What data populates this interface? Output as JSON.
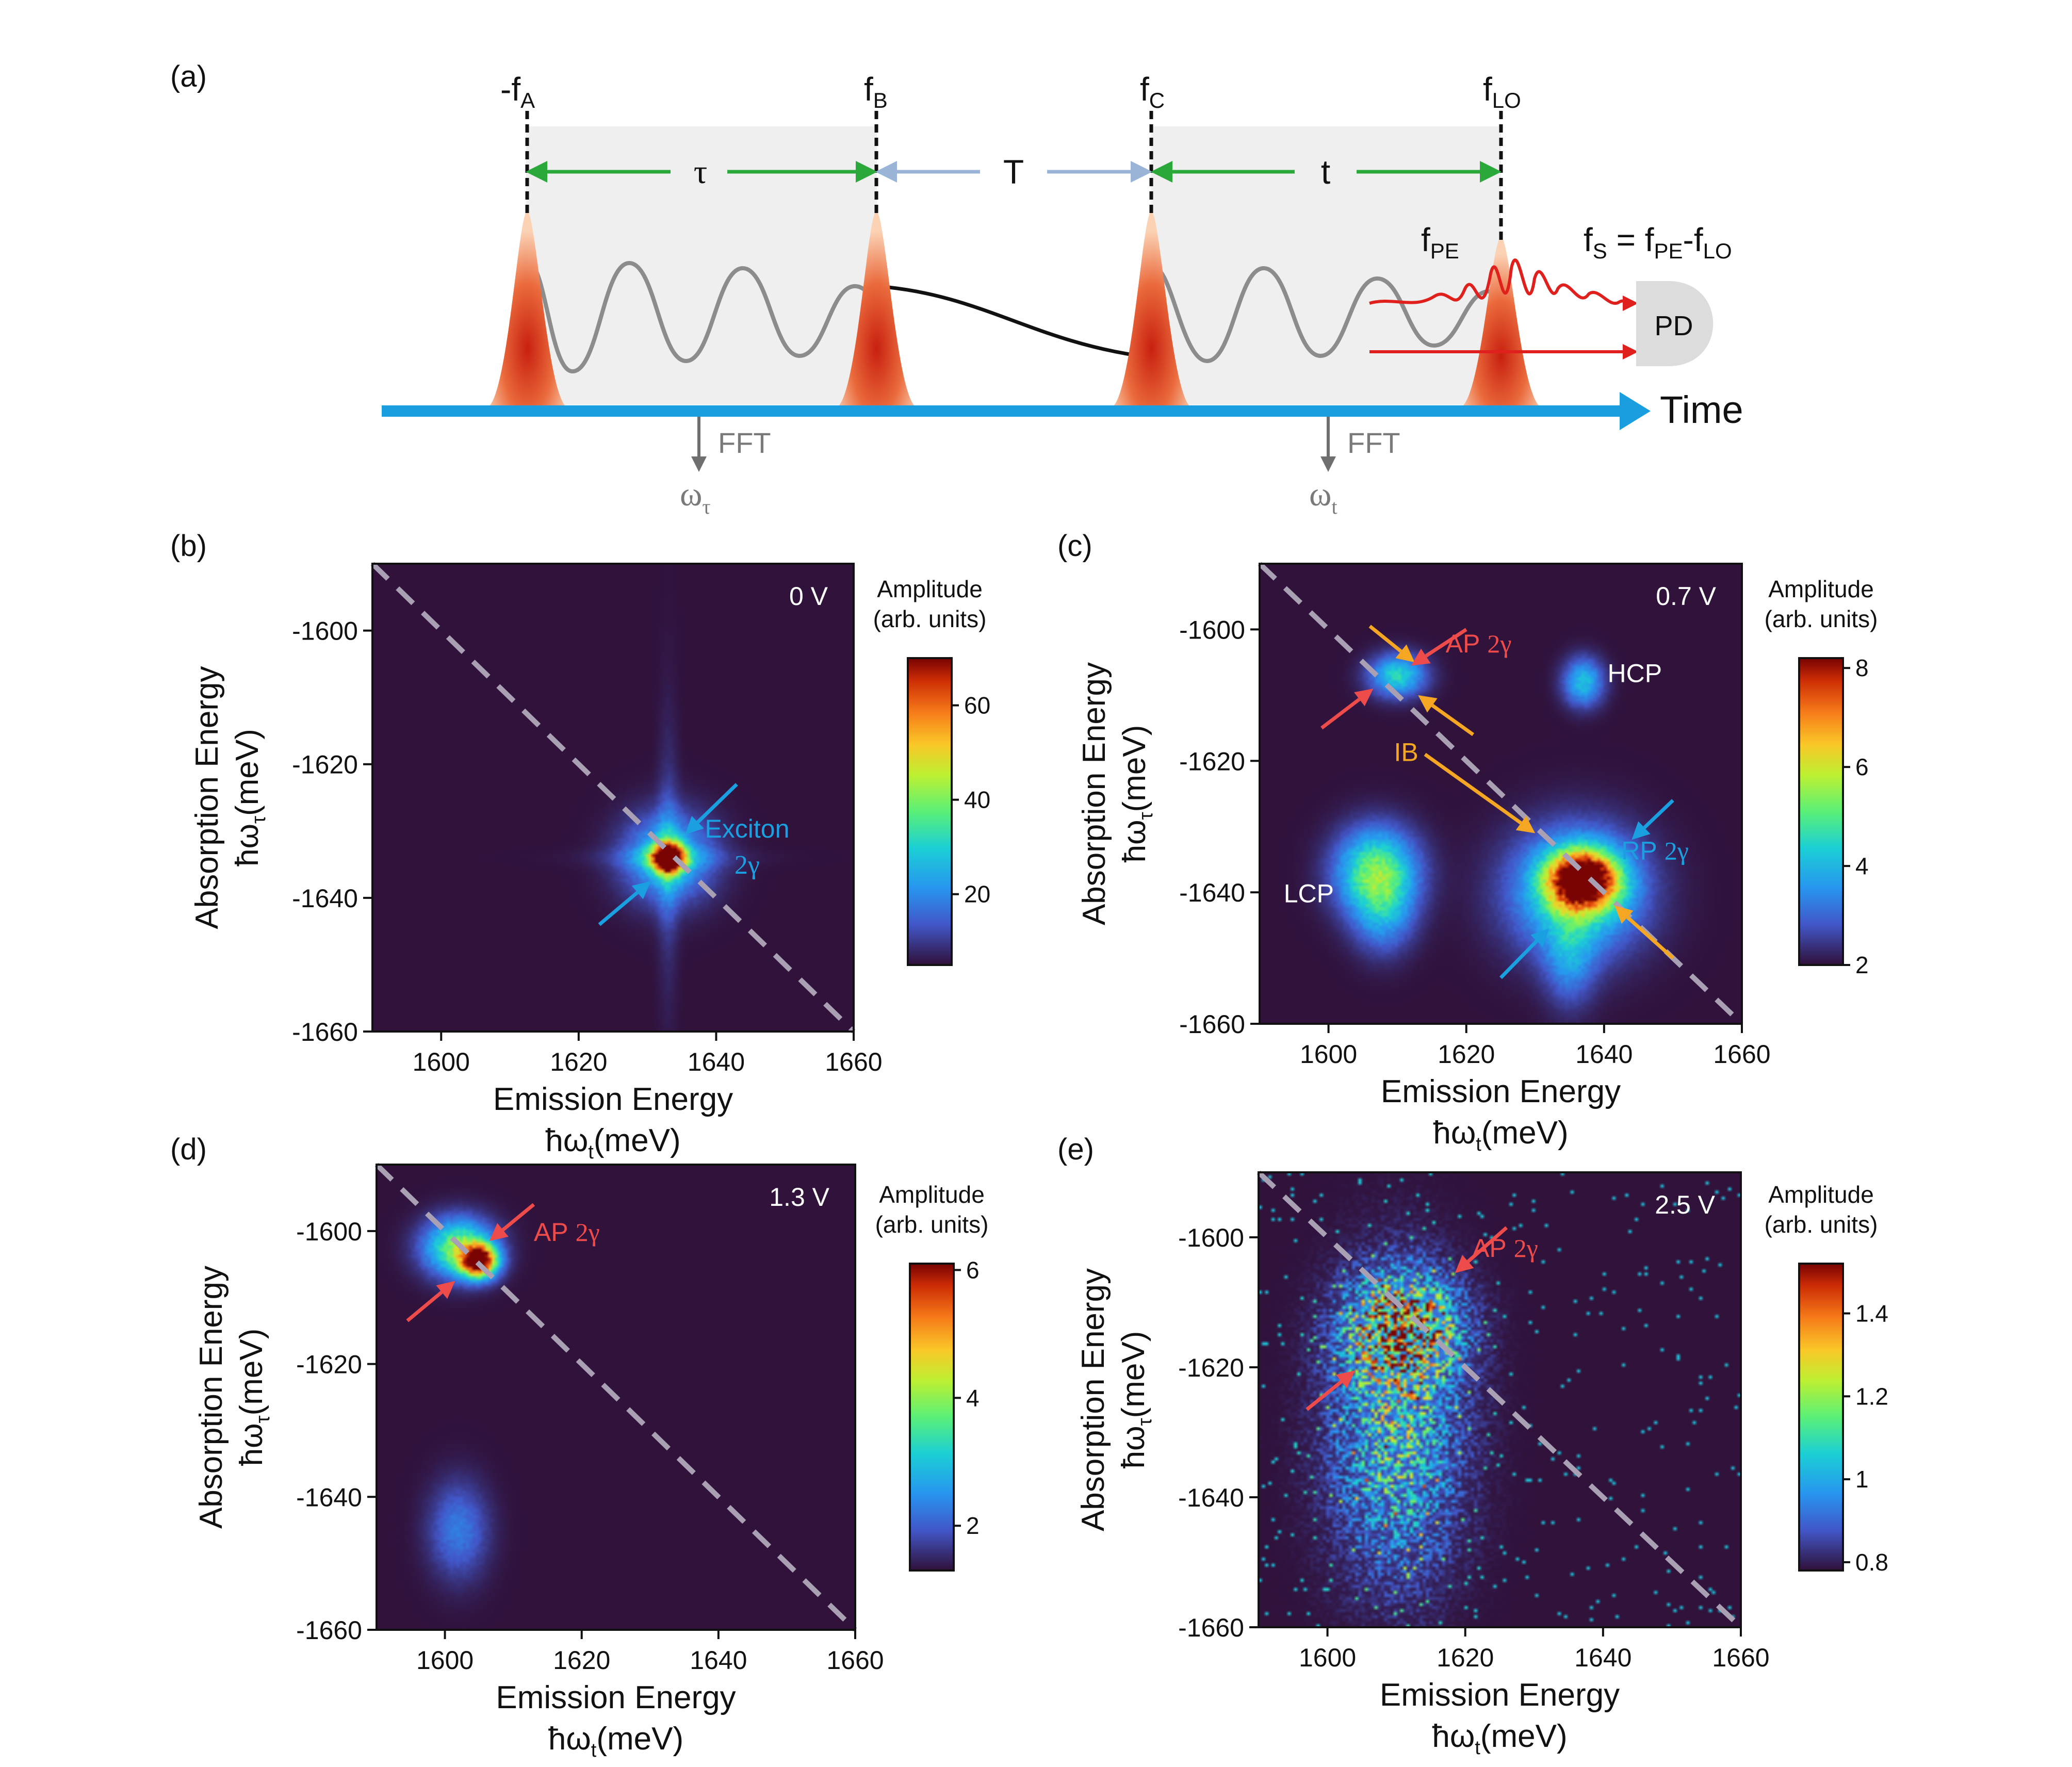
{
  "figure": {
    "colors": {
      "plot_bg": "#2a1b44",
      "diagonal": "#a9a0b4",
      "green": "#2aa83a",
      "lightblue": "#9ab4d8",
      "cyan": "#1aa0e0",
      "red": "#ee4b4b",
      "orange": "#f5a623",
      "timeline": "#1a9ee0",
      "shade": "#efefef",
      "wave": "#8c8c8c"
    },
    "schematic": {
      "panel_label": "(a)",
      "pulses": [
        {
          "label": "-f",
          "sub": "A"
        },
        {
          "label": "f",
          "sub": "B"
        },
        {
          "label": "f",
          "sub": "C"
        },
        {
          "label": "f",
          "sub": "LO"
        }
      ],
      "delays": [
        "τ",
        "T",
        "t"
      ],
      "signal_label": {
        "label": "f",
        "sub": "PE"
      },
      "equation": {
        "a": "f",
        "a_sub": "S",
        "eq": " = f",
        "b_sub": "PE",
        "minus": "-f",
        "c_sub": "LO"
      },
      "detector": "PD",
      "axis_label": "Time",
      "fft_labels": [
        "FFT",
        "FFT"
      ],
      "freq_labels": [
        {
          "label": "ω",
          "sub": "τ"
        },
        {
          "label": "ω",
          "sub": "t"
        }
      ]
    }
  },
  "chart_data": [
    {
      "panel": "(b)",
      "type": "heatmap",
      "voltage": "0 V",
      "xlabel": "Emission Energy",
      "xlabel2": "ħω",
      "xlabel2_sub": "t",
      "xlabel2_unit": "(meV)",
      "ylabel": "Absorption Energy",
      "ylabel2": "ħω",
      "ylabel2_sub": "τ",
      "ylabel2_unit": "(meV)",
      "xlim": [
        1590,
        1660
      ],
      "ylim": [
        -1660,
        -1590
      ],
      "xticks": [
        1600,
        1620,
        1640,
        1660
      ],
      "yticks": [
        -1600,
        -1620,
        -1640,
        -1660
      ],
      "colorbar": {
        "title": "Amplitude",
        "subtitle": "(arb. units)",
        "range": [
          5,
          70
        ],
        "ticks": [
          20,
          40,
          60
        ]
      },
      "peaks": [
        {
          "x": 1633,
          "y": -1634,
          "sx": 1.6,
          "sy": 1.5,
          "amp": 1.0
        },
        {
          "x": 1633,
          "y": -1634,
          "sx": 4.5,
          "sy": 4.5,
          "amp": 0.35
        }
      ],
      "cross": {
        "x": 1633,
        "y": -1634,
        "armx": 12,
        "army": 26,
        "amp": 0.22
      },
      "annotations": [
        {
          "text": "Exciton",
          "sub": "2γ",
          "x": 1644.5,
          "y": -1631,
          "color": "cyan"
        }
      ],
      "arrows": [
        {
          "x1": 1643,
          "y1": -1623,
          "x2": 1635.5,
          "y2": -1630.5,
          "color": "cyan"
        },
        {
          "x1": 1623,
          "y1": -1644,
          "x2": 1630.5,
          "y2": -1637.5,
          "color": "cyan"
        }
      ]
    },
    {
      "panel": "(c)",
      "type": "heatmap",
      "voltage": "0.7 V",
      "xlabel": "Emission Energy",
      "xlabel2": "ħω",
      "xlabel2_sub": "t",
      "xlabel2_unit": "(meV)",
      "ylabel": "Absorption Energy",
      "ylabel2": "ħω",
      "ylabel2_sub": "τ",
      "ylabel2_unit": "(meV)",
      "xlim": [
        1590,
        1660
      ],
      "ylim": [
        -1660,
        -1590
      ],
      "xticks": [
        1600,
        1620,
        1640,
        1660
      ],
      "yticks": [
        -1600,
        -1620,
        -1640,
        -1660
      ],
      "colorbar": {
        "title": "Amplitude",
        "subtitle": "(arb. units)",
        "range": [
          2,
          8.2
        ],
        "ticks": [
          2,
          4,
          6,
          8
        ]
      },
      "peaks": [
        {
          "x": 1637,
          "y": -1638,
          "sx": 3.5,
          "sy": 3.0,
          "amp": 1.0
        },
        {
          "x": 1636,
          "y": -1640,
          "sx": 6.5,
          "sy": 6.5,
          "amp": 0.45
        },
        {
          "x": 1635,
          "y": -1650,
          "sx": 2.5,
          "sy": 5.0,
          "amp": 0.2
        },
        {
          "x": 1607,
          "y": -1637,
          "sx": 4.0,
          "sy": 4.5,
          "amp": 0.55
        },
        {
          "x": 1608,
          "y": -1644,
          "sx": 3.0,
          "sy": 4.0,
          "amp": 0.2
        },
        {
          "x": 1637,
          "y": -1608,
          "sx": 2.0,
          "sy": 2.5,
          "amp": 0.35
        },
        {
          "x": 1610,
          "y": -1607,
          "sx": 2.8,
          "sy": 2.2,
          "amp": 0.4
        }
      ],
      "annotations": [
        {
          "text": "AP",
          "sub": "2γ",
          "x": 1617,
          "y": -1603.5,
          "color": "red"
        },
        {
          "text": "HCP",
          "x": 1640.5,
          "y": -1608,
          "color": "white"
        },
        {
          "text": "IB",
          "x": 1609.5,
          "y": -1620,
          "color": "orange"
        },
        {
          "text": "RP",
          "sub": "2γ",
          "x": 1642.5,
          "y": -1635,
          "color": "cyan"
        },
        {
          "text": "LCP",
          "x": 1593.5,
          "y": -1641.5,
          "color": "white"
        }
      ],
      "arrows": [
        {
          "x1": 1606,
          "y1": -1599.5,
          "x2": 1612.5,
          "y2": -1605,
          "color": "orange"
        },
        {
          "x1": 1620,
          "y1": -1600,
          "x2": 1612,
          "y2": -1605.5,
          "color": "red"
        },
        {
          "x1": 1599,
          "y1": -1615,
          "x2": 1606.5,
          "y2": -1609,
          "color": "red"
        },
        {
          "x1": 1621,
          "y1": -1616,
          "x2": 1613,
          "y2": -1610,
          "color": "orange"
        },
        {
          "x1": 1614,
          "y1": -1619,
          "x2": 1630,
          "y2": -1631,
          "color": "orange"
        },
        {
          "x1": 1650,
          "y1": -1626,
          "x2": 1644,
          "y2": -1632,
          "color": "cyan"
        },
        {
          "x1": 1625,
          "y1": -1653,
          "x2": 1632,
          "y2": -1645.5,
          "color": "cyan"
        },
        {
          "x1": 1650,
          "y1": -1650,
          "x2": 1641.5,
          "y2": -1642,
          "color": "orange"
        }
      ]
    },
    {
      "panel": "(d)",
      "type": "heatmap",
      "voltage": "1.3 V",
      "xlabel": "Emission Energy",
      "xlabel2": "ħω",
      "xlabel2_sub": "t",
      "xlabel2_unit": "(meV)",
      "ylabel": "Absorption Energy",
      "ylabel2": "ħω",
      "ylabel2_sub": "τ",
      "ylabel2_unit": "(meV)",
      "xlim": [
        1590,
        1660
      ],
      "ylim": [
        -1660,
        -1590
      ],
      "xticks": [
        1600,
        1620,
        1640,
        1660
      ],
      "yticks": [
        -1600,
        -1620,
        -1640,
        -1660
      ],
      "colorbar": {
        "title": "Amplitude",
        "subtitle": "(arb. units)",
        "range": [
          1.3,
          6.1
        ],
        "ticks": [
          2,
          4,
          6
        ]
      },
      "peaks": [
        {
          "x": 1605,
          "y": -1604.5,
          "sx": 1.8,
          "sy": 1.7,
          "amp": 1.0
        },
        {
          "x": 1602,
          "y": -1602.5,
          "sx": 3.5,
          "sy": 3.0,
          "amp": 0.55
        },
        {
          "x": 1602,
          "y": -1645,
          "sx": 3.0,
          "sy": 5.0,
          "amp": 0.2
        }
      ],
      "annotations": [
        {
          "text": "AP",
          "sub": "2γ",
          "x": 1613,
          "y": -1601.5,
          "color": "red"
        }
      ],
      "arrows": [
        {
          "x1": 1613,
          "y1": -1596,
          "x2": 1606.5,
          "y2": -1601.5,
          "color": "red"
        },
        {
          "x1": 1594.5,
          "y1": -1613.5,
          "x2": 1601.5,
          "y2": -1607.5,
          "color": "red"
        }
      ]
    },
    {
      "panel": "(e)",
      "type": "heatmap",
      "voltage": "2.5 V",
      "xlabel": "Emission Energy",
      "xlabel2": "ħω",
      "xlabel2_sub": "t",
      "xlabel2_unit": "(meV)",
      "ylabel": "Absorption Energy",
      "ylabel2": "ħω",
      "ylabel2_sub": "τ",
      "ylabel2_unit": "(meV)",
      "xlim": [
        1590,
        1660
      ],
      "ylim": [
        -1660,
        -1590
      ],
      "xticks": [
        1600,
        1620,
        1640,
        1660
      ],
      "yticks": [
        -1600,
        -1620,
        -1640,
        -1660
      ],
      "colorbar": {
        "title": "Amplitude",
        "subtitle": "(arb. units)",
        "range": [
          0.78,
          1.52
        ],
        "ticks": [
          0.8,
          1.0,
          1.2,
          1.4
        ]
      },
      "peaks": [
        {
          "x": 1611,
          "y": -1614,
          "sx": 5.0,
          "sy": 5.0,
          "amp": 0.85
        },
        {
          "x": 1610,
          "y": -1630,
          "sx": 6.0,
          "sy": 14.0,
          "amp": 0.45
        }
      ],
      "speckle": true,
      "annotations": [
        {
          "text": "AP",
          "sub": "2γ",
          "x": 1621,
          "y": -1603,
          "color": "red"
        }
      ],
      "arrows": [
        {
          "x1": 1626,
          "y1": -1598.5,
          "x2": 1618.5,
          "y2": -1605.5,
          "color": "red"
        },
        {
          "x1": 1597,
          "y1": -1626.5,
          "x2": 1604,
          "y2": -1620.5,
          "color": "red"
        }
      ]
    }
  ]
}
